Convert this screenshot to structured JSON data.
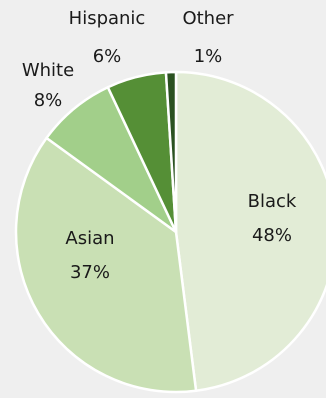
{
  "chart_data": {
    "type": "pie",
    "title": "",
    "slices": [
      {
        "label": "Black",
        "value": 48,
        "value_label": "48%",
        "color": "#e2ecd6"
      },
      {
        "label": "Asian",
        "value": 37,
        "value_label": "37%",
        "color": "#c9e0b4"
      },
      {
        "label": "White",
        "value": 8,
        "value_label": "8%",
        "color": "#a2cf8a"
      },
      {
        "label": "Hispanic",
        "value": 6,
        "value_label": "6%",
        "color": "#558f36"
      },
      {
        "label": "Other",
        "value": 1,
        "value_label": "1%",
        "color": "#2b5221"
      }
    ],
    "start_angle": "12 o'clock",
    "direction": "clockwise",
    "edge_color": "#ffffff"
  }
}
